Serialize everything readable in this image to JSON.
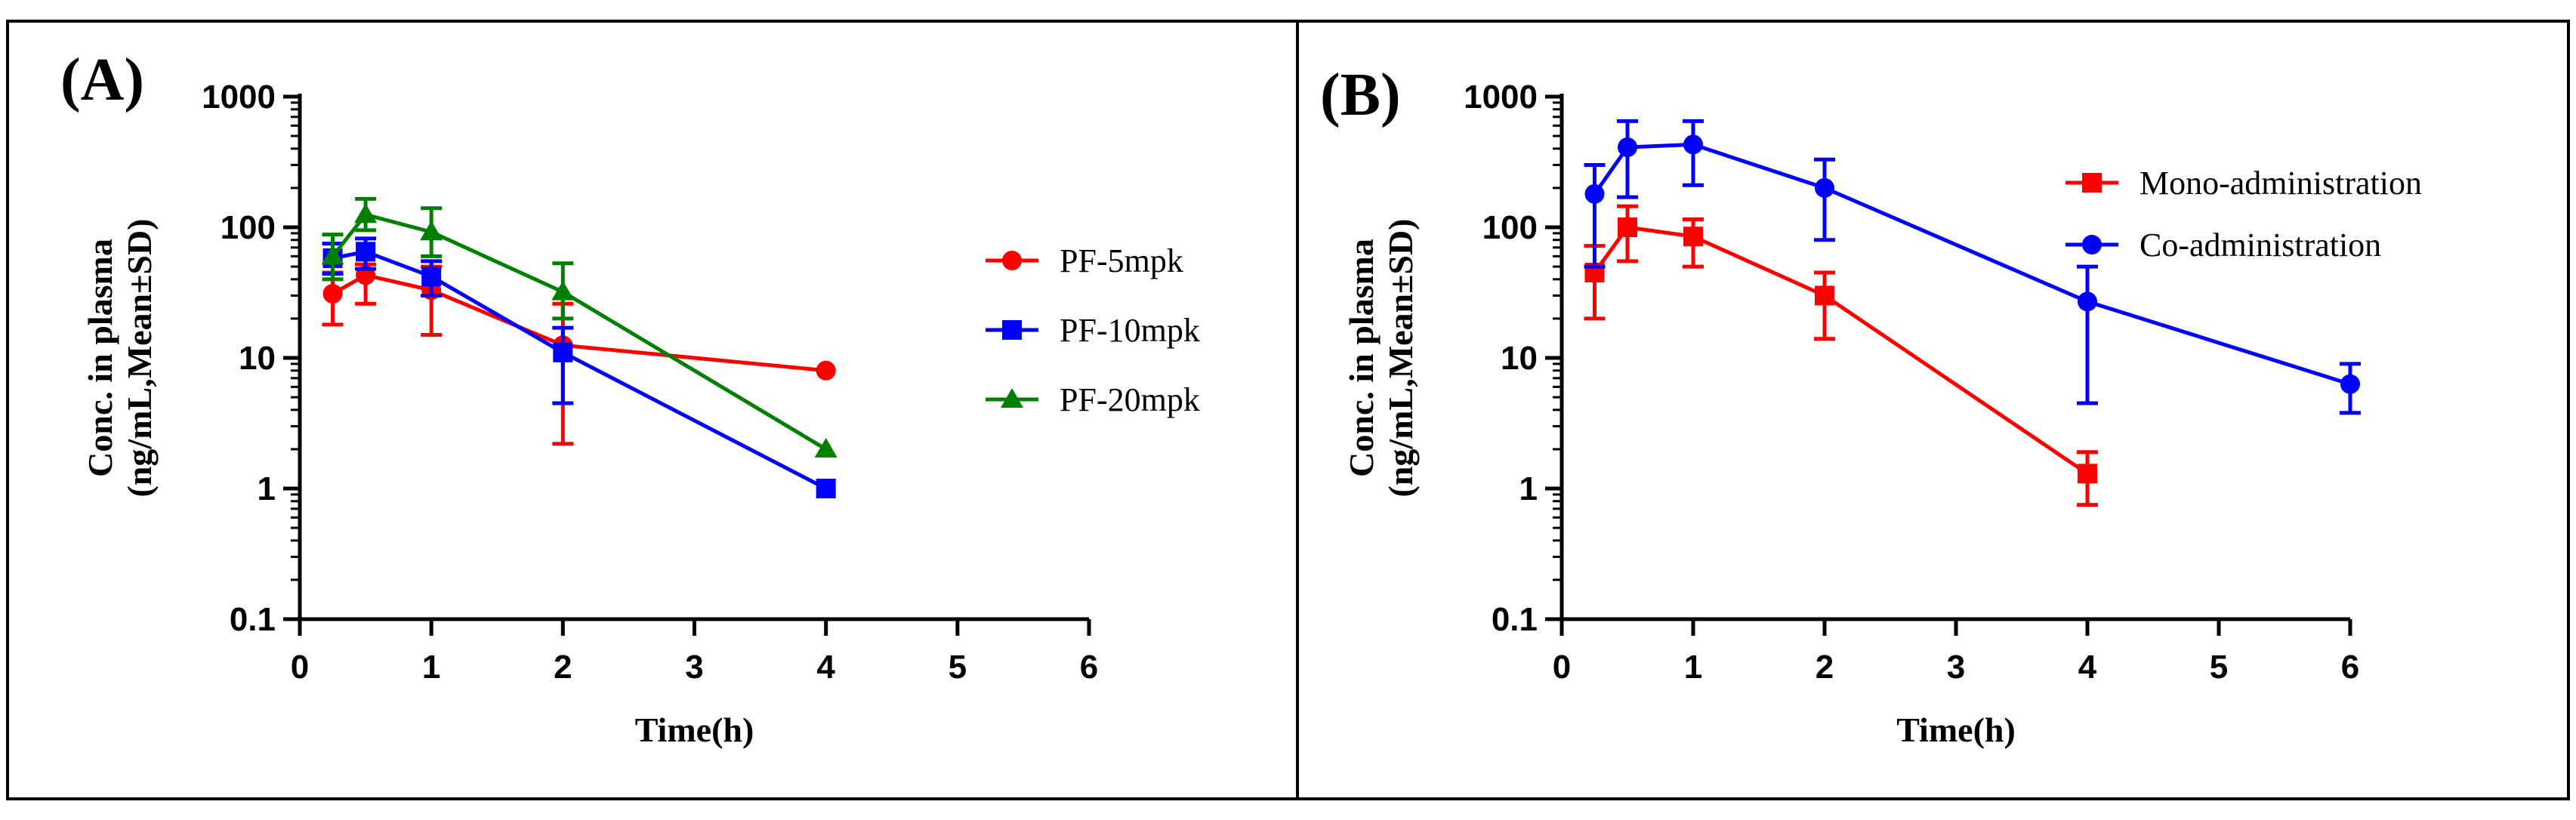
{
  "chart_data": [
    {
      "type": "line",
      "panel_label": "(A)",
      "xlabel": "Time(h)",
      "ylabel": [
        "Conc. in plasma",
        "(ng/mL,Mean±SD)"
      ],
      "yscale": "log",
      "xlim": [
        0,
        6
      ],
      "ylim": [
        0.1,
        1000
      ],
      "x_ticks": [
        "0",
        "1",
        "2",
        "3",
        "4",
        "5",
        "6"
      ],
      "y_ticks": [
        "0.1",
        "1",
        "10",
        "100",
        "1000"
      ],
      "legend_position": "right",
      "series": [
        {
          "name": "PF-5mpk",
          "color": "#ff0000",
          "marker": "circle",
          "x": [
            0.25,
            0.5,
            1,
            2,
            4
          ],
          "y": [
            31,
            43,
            33,
            12.5,
            8
          ],
          "err_low": [
            18,
            26,
            15,
            2.2,
            null
          ],
          "err_high": [
            45,
            52,
            50,
            26,
            null
          ]
        },
        {
          "name": "PF-10mpk",
          "color": "#0000ff",
          "marker": "square",
          "x": [
            0.25,
            0.5,
            1,
            2,
            4
          ],
          "y": [
            58,
            65,
            42,
            11,
            1
          ],
          "err_low": [
            44,
            48,
            30,
            4.5,
            null
          ],
          "err_high": [
            75,
            82,
            55,
            17,
            null
          ]
        },
        {
          "name": "PF-20mpk",
          "color": "#008000",
          "marker": "triangle",
          "x": [
            0.25,
            0.5,
            1,
            2,
            4
          ],
          "y": [
            60,
            125,
            92,
            32,
            2
          ],
          "err_low": [
            40,
            95,
            60,
            20,
            null
          ],
          "err_high": [
            88,
            165,
            140,
            53,
            null
          ]
        }
      ]
    },
    {
      "type": "line",
      "panel_label": "(B)",
      "xlabel": "Time(h)",
      "ylabel": [
        "Conc. in plasma",
        "(ng/mL,Mean±SD)"
      ],
      "yscale": "log",
      "xlim": [
        0,
        6
      ],
      "ylim": [
        0.1,
        1000
      ],
      "x_ticks": [
        "0",
        "1",
        "2",
        "3",
        "4",
        "5",
        "6"
      ],
      "y_ticks": [
        "0.1",
        "1",
        "10",
        "100",
        "1000"
      ],
      "legend_position": "top-right",
      "series": [
        {
          "name": "Mono-administration",
          "color": "#ff0000",
          "marker": "square",
          "x": [
            0.25,
            0.5,
            1,
            2,
            4
          ],
          "y": [
            45,
            100,
            85,
            30,
            1.3
          ],
          "err_low": [
            20,
            55,
            50,
            14,
            0.75
          ],
          "err_high": [
            72,
            145,
            115,
            45,
            1.9
          ]
        },
        {
          "name": "Co-administration",
          "color": "#0000ff",
          "marker": "circle",
          "x": [
            0.25,
            0.5,
            1,
            2,
            4,
            6
          ],
          "y": [
            180,
            410,
            430,
            200,
            27,
            6.3
          ],
          "err_low": [
            50,
            170,
            210,
            80,
            4.5,
            3.8
          ],
          "err_high": [
            300,
            650,
            650,
            330,
            50,
            9
          ]
        }
      ]
    }
  ]
}
